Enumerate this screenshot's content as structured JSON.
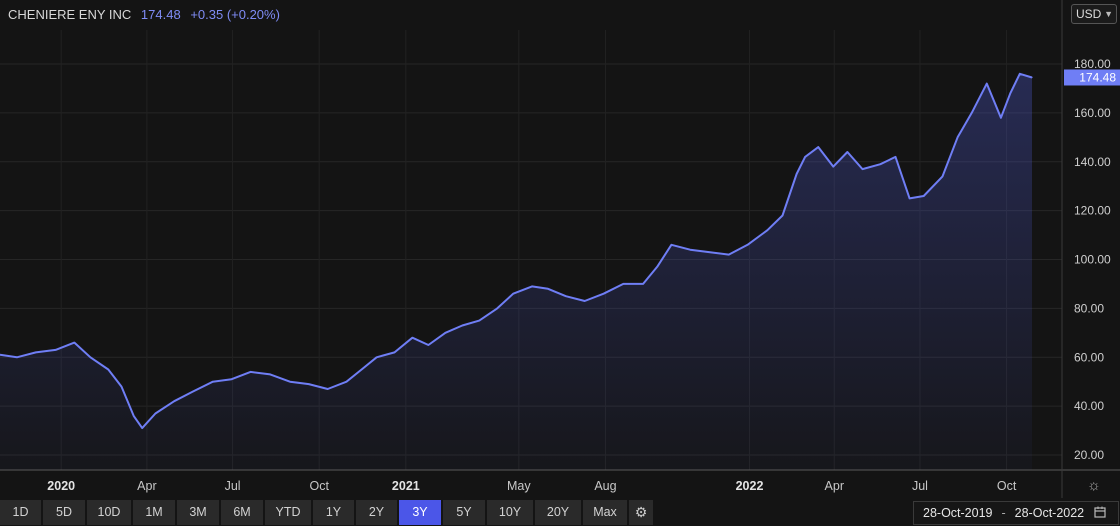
{
  "header": {
    "company": "CHENIERE ENY INC",
    "price": "174.48",
    "change": "+0.35 (+0.20%)"
  },
  "currency": {
    "label": "USD",
    "icon": "chevron-down-icon"
  },
  "last_price_tag": "174.48",
  "colors": {
    "line": "#6f7ef5",
    "accent": "#4b56e8",
    "background": "#141414"
  },
  "toolbar": {
    "buttons": [
      "1D",
      "5D",
      "10D",
      "1M",
      "3M",
      "6M",
      "YTD",
      "1Y",
      "2Y",
      "3Y",
      "5Y",
      "10Y",
      "20Y",
      "Max"
    ],
    "active": "3Y",
    "settings_icon": "gear-icon"
  },
  "date_range": {
    "start": "28-Oct-2019",
    "separator": "-",
    "end": "28-Oct-2022",
    "icon": "calendar-icon"
  },
  "chart_data": {
    "type": "area",
    "title": "CHENIERE ENY INC",
    "xlabel": "",
    "ylabel": "",
    "ylim": [
      20,
      180
    ],
    "y_ticks": [
      20,
      40,
      60,
      80,
      100,
      120,
      140,
      160,
      180
    ],
    "y_tick_labels": [
      "20.00",
      "40.00",
      "60.00",
      "80.00",
      "100.00",
      "120.00",
      "140.00",
      "160.00",
      "180.00"
    ],
    "x_range": [
      "2019-10-28",
      "2022-10-28"
    ],
    "x_ticks": [
      {
        "date": "2020-01-01",
        "label": "2020",
        "bold": true
      },
      {
        "date": "2020-04-01",
        "label": "Apr",
        "bold": false
      },
      {
        "date": "2020-07-01",
        "label": "Jul",
        "bold": false
      },
      {
        "date": "2020-10-01",
        "label": "Oct",
        "bold": false
      },
      {
        "date": "2021-01-01",
        "label": "2021",
        "bold": true
      },
      {
        "date": "2021-05-01",
        "label": "May",
        "bold": false
      },
      {
        "date": "2021-08-01",
        "label": "Aug",
        "bold": false
      },
      {
        "date": "2022-01-01",
        "label": "2022",
        "bold": true
      },
      {
        "date": "2022-04-01",
        "label": "Apr",
        "bold": false
      },
      {
        "date": "2022-07-01",
        "label": "Jul",
        "bold": false
      },
      {
        "date": "2022-10-01",
        "label": "Oct",
        "bold": false
      }
    ],
    "grid": true,
    "legend": "none",
    "series": [
      {
        "name": "CHENIERE ENY INC",
        "x": [
          "2019-10-28",
          "2019-11-15",
          "2019-12-05",
          "2019-12-26",
          "2020-01-15",
          "2020-02-01",
          "2020-02-20",
          "2020-03-05",
          "2020-03-18",
          "2020-03-27",
          "2020-04-10",
          "2020-04-30",
          "2020-05-20",
          "2020-06-10",
          "2020-06-30",
          "2020-07-20",
          "2020-08-10",
          "2020-08-31",
          "2020-09-20",
          "2020-10-10",
          "2020-10-30",
          "2020-11-15",
          "2020-12-01",
          "2020-12-20",
          "2021-01-08",
          "2021-01-25",
          "2021-02-12",
          "2021-03-02",
          "2021-03-20",
          "2021-04-08",
          "2021-04-25",
          "2021-05-15",
          "2021-06-01",
          "2021-06-20",
          "2021-07-10",
          "2021-07-30",
          "2021-08-20",
          "2021-09-10",
          "2021-09-25",
          "2021-10-10",
          "2021-10-30",
          "2021-11-20",
          "2021-12-10",
          "2021-12-30",
          "2022-01-20",
          "2022-02-05",
          "2022-02-20",
          "2022-03-01",
          "2022-03-15",
          "2022-03-31",
          "2022-04-15",
          "2022-05-01",
          "2022-05-20",
          "2022-06-05",
          "2022-06-20",
          "2022-07-05",
          "2022-07-25",
          "2022-08-10",
          "2022-08-25",
          "2022-09-10",
          "2022-09-25",
          "2022-10-05",
          "2022-10-15",
          "2022-10-28"
        ],
        "y": [
          61,
          60,
          62,
          63,
          66,
          60,
          55,
          48,
          36,
          31,
          37,
          42,
          46,
          50,
          51,
          54,
          53,
          50,
          49,
          47,
          50,
          55,
          60,
          62,
          68,
          65,
          70,
          73,
          75,
          80,
          86,
          89,
          88,
          85,
          83,
          86,
          90,
          90,
          97,
          106,
          104,
          103,
          102,
          106,
          112,
          118,
          135,
          142,
          146,
          138,
          144,
          137,
          139,
          142,
          125,
          126,
          134,
          150,
          160,
          172,
          158,
          168,
          176,
          174.48
        ]
      }
    ]
  }
}
